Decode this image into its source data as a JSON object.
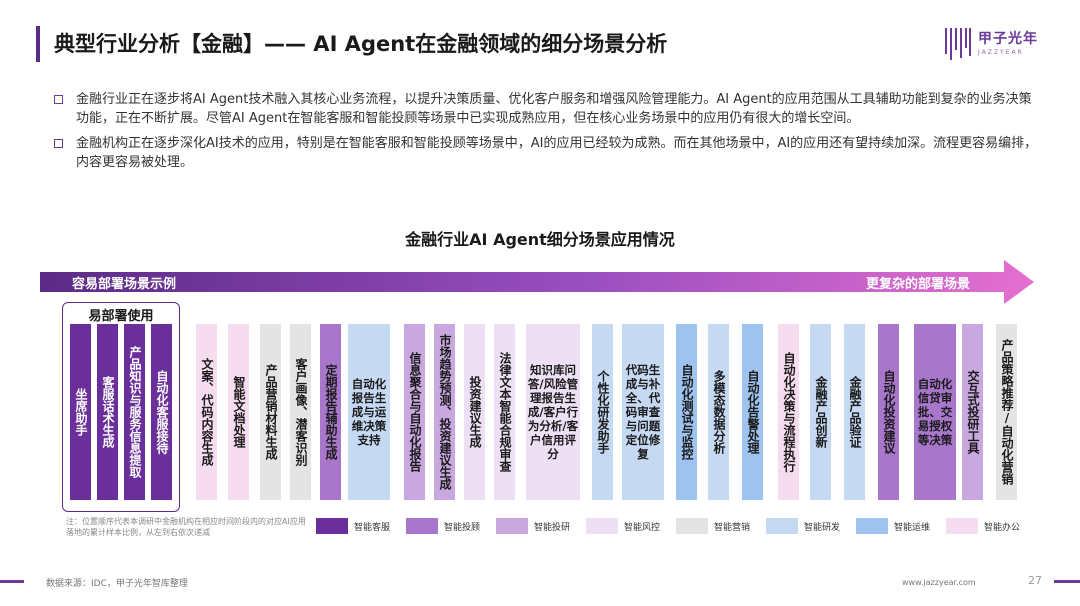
{
  "title": "典型行业分析【金融】—— AI Agent在金融领域的细分场景分析",
  "logo": {
    "name": "甲子光年",
    "sub": "JAZZYEAR"
  },
  "bullets": [
    "金融行业正在逐步将AI Agent技术融入其核心业务流程，以提升决策质量、优化客户服务和增强风险管理能力。AI Agent的应用范围从工具辅助功能到复杂的业务决策功能，正在不断扩展。尽管AI Agent在智能客服和智能投顾等场景中已实现成熟应用，但在核心业务场景中的应用仍有很大的增长空间。",
    "金融机构正在逐步深化AI技术的应用，特别是在智能客服和智能投顾等场景中，AI的应用已经较为成熟。而在其他场景中，AI的应用还有望持续加深。流程更容易编排，内容更容易被处理。"
  ],
  "chart": {
    "title": "金融行业AI Agent细分场景应用情况",
    "arrow_left": "容易部署场景示例",
    "arrow_right": "更复杂的部署场景",
    "easy_label": "易部署使用",
    "columns": [
      {
        "label": "坐席助手",
        "color": "#6a2f9a",
        "dark": true
      },
      {
        "label": "客服话术生成",
        "color": "#6a2f9a",
        "dark": true
      },
      {
        "label": "产品知识与服务信息提取",
        "color": "#6a2f9a",
        "dark": true
      },
      {
        "label": "自动化客服接待",
        "color": "#6a2f9a",
        "dark": true
      },
      {
        "label": "文案、代码内容生成",
        "color": "#f6dcef",
        "dark": false
      },
      {
        "label": "智能文档处理",
        "color": "#f6dcef",
        "dark": false
      },
      {
        "label": "产品营销材料生成",
        "color": "#e4e4e4",
        "dark": false
      },
      {
        "label": "客户画像、潜客识别",
        "color": "#e4e4e4",
        "dark": false
      },
      {
        "label": "定期报告辅助生成",
        "color": "#a877cc",
        "dark": false
      },
      {
        "label": "自动化报告生成与运维决策支持",
        "color": "#c5d9f3",
        "dark": false,
        "wide": true
      },
      {
        "label": "信息聚合与自动化报告",
        "color": "#c9a8e0",
        "dark": false
      },
      {
        "label": "市场趋势预测、投资建议生成",
        "color": "#c9a8e0",
        "dark": false
      },
      {
        "label": "投资建议生成",
        "color": "#ede0f5",
        "dark": false
      },
      {
        "label": "法律文本智能合规审查",
        "color": "#ede0f5",
        "dark": false
      },
      {
        "label": "知识库问答/风险管理报告生成/客户行为分析/客户信用评分",
        "color": "#ede0f5",
        "dark": false,
        "mid": true
      },
      {
        "label": "个性化研发助手",
        "color": "#c5d9f3",
        "dark": false
      },
      {
        "label": "代码生成与补全、代码审查与问题定位修复",
        "color": "#c5d9f3",
        "dark": false,
        "wide": true
      },
      {
        "label": "自动化测试与监控",
        "color": "#9ec3ef",
        "dark": false
      },
      {
        "label": "多模态数据分析",
        "color": "#c5d9f3",
        "dark": false
      },
      {
        "label": "自动化告警处理",
        "color": "#9ec3ef",
        "dark": false
      },
      {
        "label": "自动化决策与流程执行",
        "color": "#f6dcef",
        "dark": false
      },
      {
        "label": "金融产品创新",
        "color": "#c5d9f3",
        "dark": false
      },
      {
        "label": "金融产品验证",
        "color": "#c5d9f3",
        "dark": false
      },
      {
        "label": "自动化投资建议",
        "color": "#a877cc",
        "dark": false
      },
      {
        "label": "自动化信贷审批、交易授权等决策",
        "color": "#a877cc",
        "dark": false,
        "wide": true
      },
      {
        "label": "交互式投研工具",
        "color": "#c9a8e0",
        "dark": false
      },
      {
        "label": "产品策略推荐/自动化营销",
        "color": "#e4e4e4",
        "dark": false
      }
    ],
    "note": "注：位置顺序代表本调研中金融机构在相应时间阶段内的对应AI应用落地的累计样本比例，从左到右依次递减",
    "legend": [
      {
        "label": "智能客服",
        "color": "#6a2f9a"
      },
      {
        "label": "智能投顾",
        "color": "#a877cc"
      },
      {
        "label": "智能投研",
        "color": "#c9a8e0"
      },
      {
        "label": "智能风控",
        "color": "#ede0f5"
      },
      {
        "label": "智能营销",
        "color": "#e4e4e4"
      },
      {
        "label": "智能研发",
        "color": "#c5d9f3"
      },
      {
        "label": "智能运维",
        "color": "#9ec3ef"
      },
      {
        "label": "智能办公",
        "color": "#f6dcef"
      }
    ]
  },
  "footer": {
    "source": "数据来源：IDC，甲子光年智库整理",
    "site": "www.jazzyear.com",
    "page": "27"
  }
}
